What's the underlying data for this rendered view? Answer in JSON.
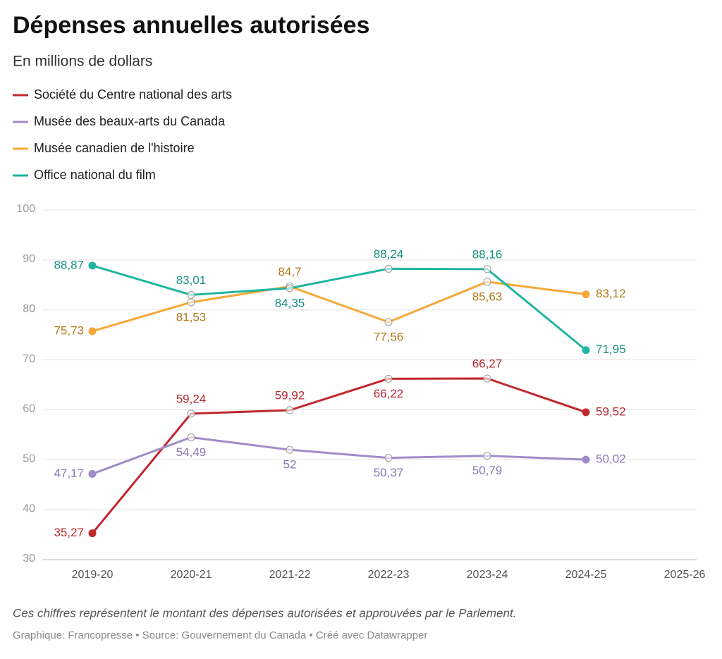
{
  "chart_data": {
    "type": "line",
    "title": "Dépenses annuelles autorisées",
    "subtitle": "En millions de dollars",
    "note": "Ces chiffres représentent le montant des dépenses autorisées et approuvées par le Parlement.",
    "source": "Graphique: Francopresse • Source: Gouvernement du Canada • Créé avec Datawrapper",
    "categories": [
      "2019-20",
      "2020-21",
      "2021-22",
      "2022-23",
      "2023-24",
      "2024-25",
      "2025-26"
    ],
    "series": [
      {
        "name": "Société du Centre national des arts",
        "color": "#c0282d",
        "label_color": "#b8292f",
        "values": [
          35.27,
          59.24,
          59.92,
          66.22,
          66.27,
          59.52,
          null
        ],
        "value_labels": [
          "35,27",
          "59,24",
          "59,92",
          "66,22",
          "66,27",
          "59,52",
          null
        ]
      },
      {
        "name": "Musée des beaux-arts du Canada",
        "color": "#a08cc8",
        "label_color": "#8a76b8",
        "values": [
          47.17,
          54.49,
          52,
          50.37,
          50.79,
          50.02,
          null
        ],
        "value_labels": [
          "47,17",
          "54,49",
          "52",
          "50,37",
          "50,79",
          "50,02",
          null
        ]
      },
      {
        "name": "Musée canadien de l'histoire",
        "color": "#f5a838",
        "label_color": "#b07818",
        "values": [
          75.73,
          81.53,
          84.7,
          77.56,
          85.63,
          83.12,
          null
        ],
        "value_labels": [
          "75,73",
          "81,53",
          "84,7",
          "77,56",
          "85,63",
          "83,12",
          null
        ]
      },
      {
        "name": "Office national du film",
        "color": "#1fb5a0",
        "label_color": "#17917f",
        "values": [
          88.87,
          83.01,
          84.35,
          88.24,
          88.16,
          71.95,
          null
        ],
        "value_labels": [
          "88,87",
          "83,01",
          "84,35",
          "88,24",
          "88,16",
          "71,95",
          null
        ]
      }
    ],
    "ylim": [
      30,
      100
    ],
    "yticks": [
      30,
      40,
      50,
      60,
      70,
      80,
      90,
      100
    ],
    "grid": true
  }
}
